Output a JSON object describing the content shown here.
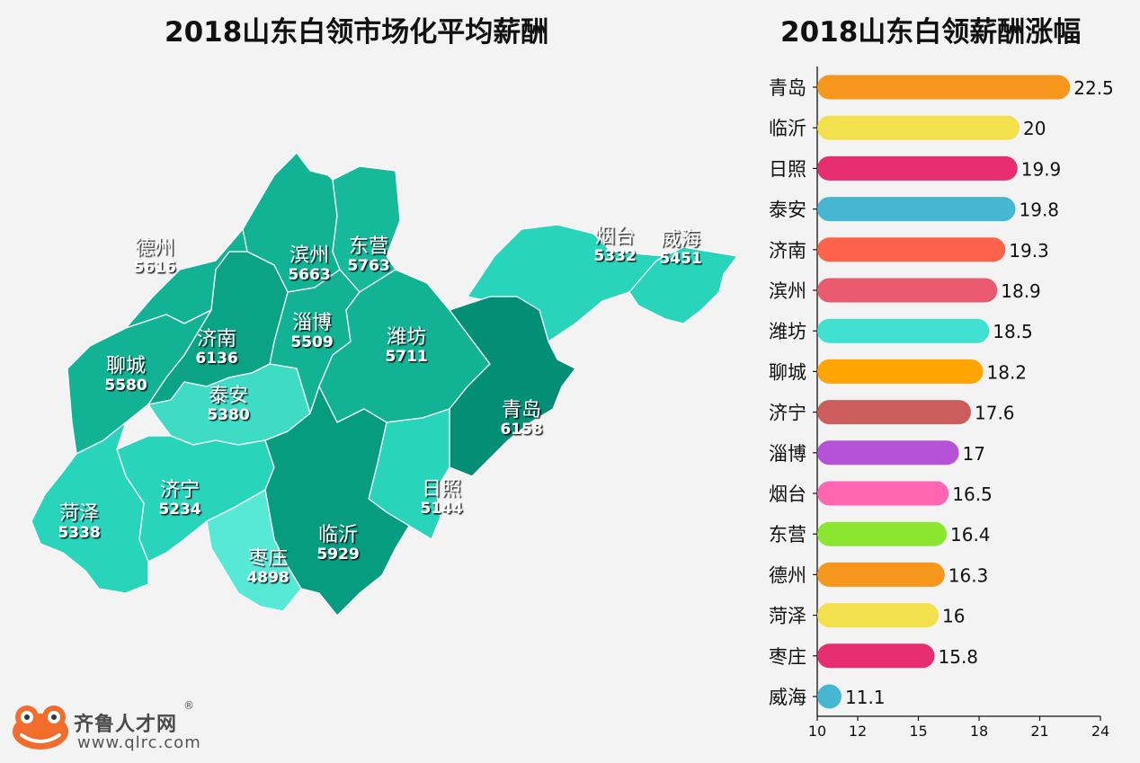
{
  "chart_data": [
    {
      "type": "map",
      "title": "2018山东白领市场化平均薪酬",
      "regions": [
        {
          "name": "德州",
          "value": 5616
        },
        {
          "name": "滨州",
          "value": 5663
        },
        {
          "name": "东营",
          "value": 5763
        },
        {
          "name": "烟台",
          "value": 5332
        },
        {
          "name": "威海",
          "value": 5451
        },
        {
          "name": "淄博",
          "value": 5509
        },
        {
          "name": "潍坊",
          "value": 5711
        },
        {
          "name": "济南",
          "value": 6136
        },
        {
          "name": "聊城",
          "value": 5580
        },
        {
          "name": "泰安",
          "value": 5380
        },
        {
          "name": "青岛",
          "value": 6158
        },
        {
          "name": "济宁",
          "value": 5234
        },
        {
          "name": "日照",
          "value": 5144
        },
        {
          "name": "菏泽",
          "value": 5338
        },
        {
          "name": "临沂",
          "value": 5929
        },
        {
          "name": "枣庄",
          "value": 4898
        }
      ]
    },
    {
      "type": "bar",
      "orientation": "horizontal",
      "title": "2018山东白领薪酬涨幅",
      "categories": [
        "青岛",
        "临沂",
        "日照",
        "泰安",
        "济南",
        "滨州",
        "潍坊",
        "聊城",
        "济宁",
        "淄博",
        "烟台",
        "东营",
        "德州",
        "菏泽",
        "枣庄",
        "威海"
      ],
      "values": [
        22.5,
        20,
        19.9,
        19.8,
        19.3,
        18.9,
        18.5,
        18.2,
        17.6,
        17,
        16.5,
        16.4,
        16.3,
        16,
        15.8,
        11.1
      ],
      "colors": [
        "#f7961d",
        "#f2e14d",
        "#e62d6f",
        "#46b7d3",
        "#fd624a",
        "#e95a6f",
        "#40e0d0",
        "#ffa502",
        "#cd5c5c",
        "#b652d6",
        "#ff66b2",
        "#8be630",
        "#f7961d",
        "#f2e14d",
        "#e62d6f",
        "#46b7d3"
      ],
      "xlim": [
        10,
        24
      ],
      "xticks": [
        10,
        12,
        15,
        18,
        21,
        24
      ]
    }
  ],
  "logo": {
    "name": "齐鲁人才网",
    "url": "www.qlrc.com",
    "reg": "®"
  }
}
